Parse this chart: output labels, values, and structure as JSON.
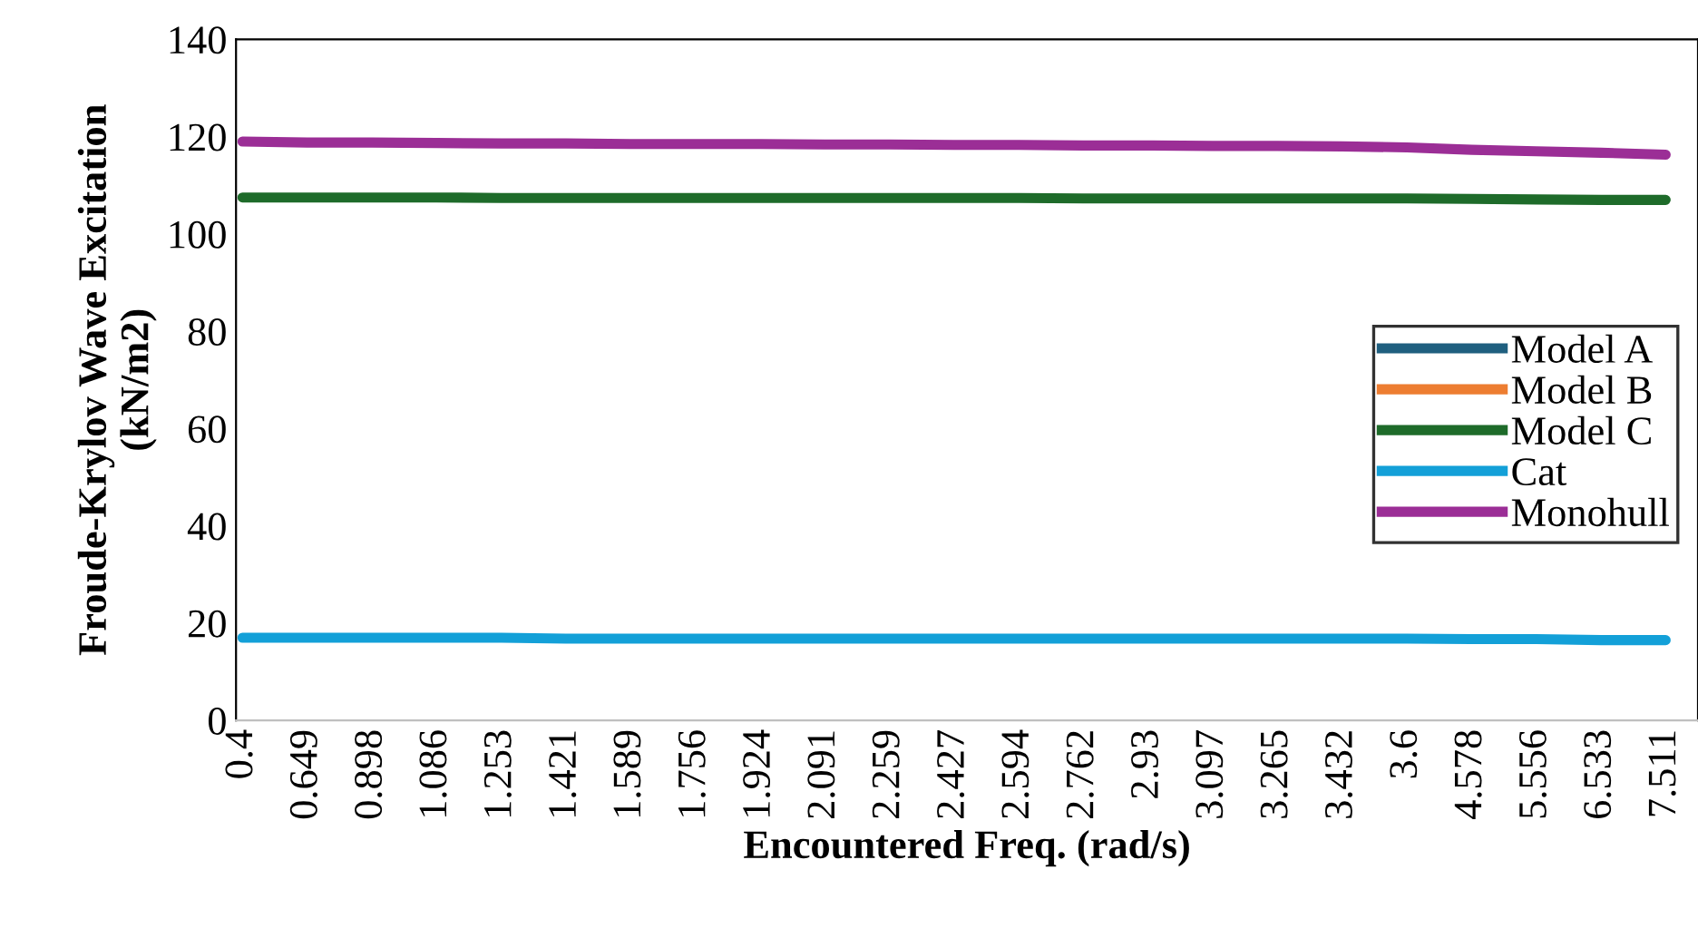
{
  "chart_data": {
    "type": "line",
    "xlabel": "Encountered Freq. (rad/s)",
    "ylabel": "Froude-Krylov Wave Excitation\n(kN/m2)",
    "categories": [
      "0.4",
      "0.649",
      "0.898",
      "1.086",
      "1.253",
      "1.421",
      "1.589",
      "1.756",
      "1.924",
      "2.091",
      "2.259",
      "2.427",
      "2.594",
      "2.762",
      "2.93",
      "3.097",
      "3.265",
      "3.432",
      "3.6",
      "4.578",
      "5.556",
      "6.533",
      "7.511"
    ],
    "series": [
      {
        "name": "Model A",
        "color": "#1f5f7f",
        "values": [
          null,
          null,
          null,
          null,
          null,
          null,
          null,
          null,
          null,
          null,
          null,
          null,
          null,
          null,
          null,
          null,
          null,
          null,
          null,
          null,
          null,
          null,
          null
        ]
      },
      {
        "name": "Model B",
        "color": "#ed7d31",
        "values": [
          null,
          null,
          null,
          null,
          null,
          null,
          null,
          null,
          null,
          null,
          null,
          null,
          null,
          null,
          null,
          null,
          null,
          null,
          null,
          null,
          null,
          null,
          null
        ]
      },
      {
        "name": "Model C",
        "color": "#1e6b2a",
        "values": [
          107.5,
          107.5,
          107.5,
          107.5,
          107.4,
          107.4,
          107.4,
          107.4,
          107.4,
          107.4,
          107.4,
          107.4,
          107.4,
          107.3,
          107.3,
          107.3,
          107.3,
          107.3,
          107.3,
          107.2,
          107.1,
          107,
          107
        ]
      },
      {
        "name": "Cat",
        "color": "#13a0d8",
        "values": [
          17,
          17,
          17,
          17,
          17,
          16.8,
          16.8,
          16.8,
          16.8,
          16.8,
          16.8,
          16.8,
          16.8,
          16.8,
          16.8,
          16.8,
          16.8,
          16.8,
          16.8,
          16.7,
          16.7,
          16.5,
          16.5
        ]
      },
      {
        "name": "Monohull",
        "color": "#9b2e96",
        "values": [
          119,
          118.8,
          118.8,
          118.7,
          118.6,
          118.6,
          118.5,
          118.5,
          118.5,
          118.4,
          118.4,
          118.3,
          118.3,
          118.2,
          118.2,
          118.1,
          118.1,
          118,
          117.8,
          117.3,
          117,
          116.7,
          116.3
        ]
      }
    ],
    "ylim": [
      0,
      140
    ],
    "yticks": [
      0,
      20,
      40,
      60,
      80,
      100,
      120,
      140
    ],
    "grid": false,
    "legend": "right",
    "marker": "none",
    "line_style": "solid"
  }
}
